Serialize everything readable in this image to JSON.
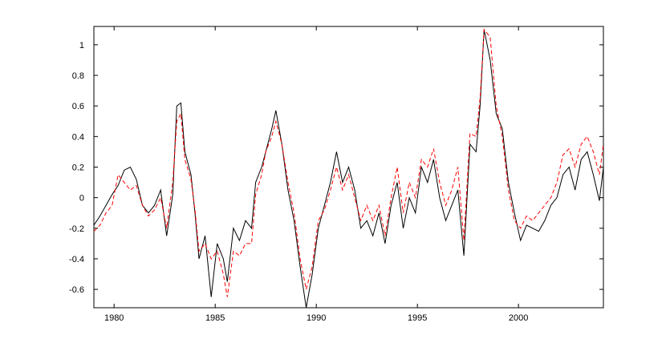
{
  "chart_data": {
    "type": "line",
    "title": "",
    "xlabel": "",
    "ylabel": "",
    "xlim": [
      1979.0,
      2004.2
    ],
    "ylim": [
      -0.72,
      1.12
    ],
    "x_ticks": [
      1980,
      1985,
      1990,
      1995,
      2000
    ],
    "x_tick_labels": [
      "1980",
      "1985",
      "1990",
      "1995",
      "2000"
    ],
    "y_ticks": [
      -0.6,
      -0.4,
      -0.2,
      0,
      0.2,
      0.4,
      0.6,
      0.8,
      1
    ],
    "y_tick_labels": [
      "-0.6",
      "-0.4",
      "-0.2",
      "0",
      "0.2",
      "0.4",
      "0.6",
      "0.8",
      "1"
    ],
    "grid": false,
    "legend": "none",
    "colors": {
      "series_solid": "#000000",
      "series_dashed": "#ff0000"
    },
    "series": [
      {
        "style": "solid",
        "color": "#000000",
        "x": [
          1979.0,
          1979.3,
          1979.6,
          1979.9,
          1980.2,
          1980.5,
          1980.8,
          1981.1,
          1981.4,
          1981.7,
          1982.0,
          1982.3,
          1982.6,
          1982.9,
          1983.1,
          1983.3,
          1983.5,
          1983.8,
          1984.0,
          1984.2,
          1984.5,
          1984.8,
          1985.1,
          1985.4,
          1985.6,
          1985.9,
          1986.2,
          1986.5,
          1986.8,
          1987.0,
          1987.3,
          1987.5,
          1987.8,
          1988.0,
          1988.3,
          1988.6,
          1988.9,
          1989.2,
          1989.5,
          1989.8,
          1990.1,
          1990.4,
          1990.7,
          1991.0,
          1991.3,
          1991.6,
          1991.9,
          1992.2,
          1992.5,
          1992.8,
          1993.1,
          1993.4,
          1993.7,
          1994.0,
          1994.3,
          1994.6,
          1994.9,
          1995.2,
          1995.5,
          1995.8,
          1996.1,
          1996.4,
          1996.7,
          1997.0,
          1997.3,
          1997.6,
          1997.9,
          1998.1,
          1998.3,
          1998.6,
          1998.9,
          1999.2,
          1999.5,
          1999.8,
          2000.1,
          2000.4,
          2000.7,
          2001.0,
          2001.3,
          2001.6,
          2001.9,
          2002.2,
          2002.5,
          2002.8,
          2003.1,
          2003.4,
          2003.7,
          2004.0,
          2004.2
        ],
        "values": [
          -0.18,
          -0.12,
          -0.05,
          0.02,
          0.08,
          0.18,
          0.2,
          0.12,
          -0.05,
          -0.1,
          -0.05,
          0.05,
          -0.25,
          0.02,
          0.6,
          0.62,
          0.3,
          0.15,
          -0.1,
          -0.4,
          -0.25,
          -0.65,
          -0.3,
          -0.4,
          -0.55,
          -0.2,
          -0.28,
          -0.15,
          -0.2,
          0.1,
          0.2,
          0.3,
          0.45,
          0.57,
          0.35,
          0.05,
          -0.15,
          -0.45,
          -0.72,
          -0.5,
          -0.2,
          -0.05,
          0.1,
          0.3,
          0.1,
          0.2,
          0.05,
          -0.2,
          -0.15,
          -0.25,
          -0.1,
          -0.3,
          -0.05,
          0.1,
          -0.2,
          0.0,
          -0.1,
          0.2,
          0.1,
          0.25,
          0.0,
          -0.15,
          -0.05,
          0.05,
          -0.38,
          0.35,
          0.3,
          0.6,
          1.1,
          0.9,
          0.55,
          0.45,
          0.1,
          -0.1,
          -0.28,
          -0.18,
          -0.2,
          -0.22,
          -0.15,
          -0.05,
          0.0,
          0.15,
          0.2,
          0.05,
          0.25,
          0.3,
          0.15,
          -0.02,
          0.2
        ]
      },
      {
        "style": "dashed",
        "color": "#ff0000",
        "x": [
          1979.0,
          1979.3,
          1979.6,
          1979.9,
          1980.2,
          1980.5,
          1980.8,
          1981.1,
          1981.4,
          1981.7,
          1982.0,
          1982.3,
          1982.6,
          1982.9,
          1983.1,
          1983.3,
          1983.5,
          1983.8,
          1984.0,
          1984.2,
          1984.5,
          1984.8,
          1985.1,
          1985.4,
          1985.6,
          1985.9,
          1986.2,
          1986.5,
          1986.8,
          1987.0,
          1987.3,
          1987.5,
          1987.8,
          1988.0,
          1988.3,
          1988.6,
          1988.9,
          1989.2,
          1989.5,
          1989.8,
          1990.1,
          1990.4,
          1990.7,
          1991.0,
          1991.3,
          1991.6,
          1991.9,
          1992.2,
          1992.5,
          1992.8,
          1993.1,
          1993.4,
          1993.7,
          1994.0,
          1994.3,
          1994.6,
          1994.9,
          1995.2,
          1995.5,
          1995.8,
          1996.1,
          1996.4,
          1996.7,
          1997.0,
          1997.3,
          1997.6,
          1997.9,
          1998.1,
          1998.3,
          1998.6,
          1998.9,
          1999.2,
          1999.5,
          1999.8,
          2000.1,
          2000.4,
          2000.7,
          2001.0,
          2001.3,
          2001.6,
          2001.9,
          2002.2,
          2002.5,
          2002.8,
          2003.1,
          2003.4,
          2003.7,
          2004.0,
          2004.2
        ],
        "values": [
          -0.22,
          -0.18,
          -0.1,
          -0.05,
          0.15,
          0.1,
          0.05,
          0.08,
          -0.05,
          -0.12,
          -0.08,
          0.0,
          -0.2,
          0.1,
          0.5,
          0.55,
          0.25,
          0.12,
          -0.08,
          -0.35,
          -0.3,
          -0.4,
          -0.35,
          -0.5,
          -0.65,
          -0.35,
          -0.38,
          -0.3,
          -0.3,
          0.02,
          0.15,
          0.3,
          0.4,
          0.5,
          0.35,
          0.1,
          -0.1,
          -0.4,
          -0.6,
          -0.45,
          -0.15,
          -0.08,
          0.05,
          0.2,
          0.05,
          0.15,
          0.0,
          -0.15,
          -0.05,
          -0.15,
          -0.05,
          -0.25,
          0.0,
          0.2,
          -0.1,
          0.1,
          0.0,
          0.25,
          0.2,
          0.32,
          0.1,
          -0.05,
          0.05,
          0.2,
          -0.28,
          0.42,
          0.4,
          0.65,
          1.1,
          1.05,
          0.6,
          0.4,
          0.05,
          -0.15,
          -0.2,
          -0.12,
          -0.15,
          -0.1,
          -0.05,
          0.0,
          0.1,
          0.28,
          0.32,
          0.2,
          0.35,
          0.4,
          0.3,
          0.15,
          0.35
        ]
      }
    ]
  }
}
